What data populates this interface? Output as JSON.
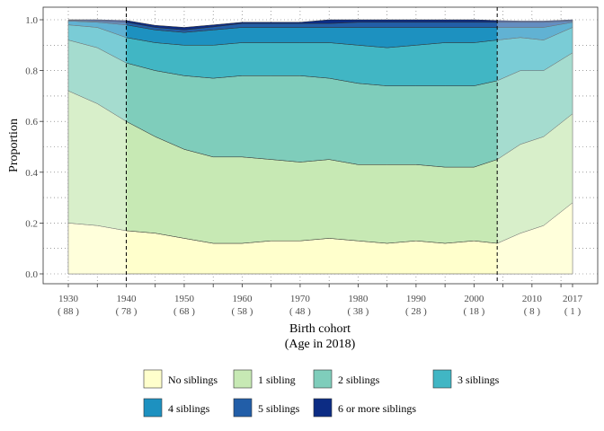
{
  "chart_data": {
    "type": "area",
    "stacked": true,
    "xlabel_line1": "Birth cohort",
    "xlabel_line2": "(Age in 2018)",
    "ylabel": "Proportion",
    "xlim": [
      1930,
      2017
    ],
    "ylim": [
      0,
      1
    ],
    "grid": true,
    "legend_position": "bottom",
    "x_ticks": [
      {
        "year": "1930",
        "age": "( 88 )"
      },
      {
        "year": "1940",
        "age": "( 78 )"
      },
      {
        "year": "1950",
        "age": "( 68 )"
      },
      {
        "year": "1960",
        "age": "( 58 )"
      },
      {
        "year": "1970",
        "age": "( 48 )"
      },
      {
        "year": "1980",
        "age": "( 38 )"
      },
      {
        "year": "1990",
        "age": "( 28 )"
      },
      {
        "year": "2000",
        "age": "( 18 )"
      },
      {
        "year": "2010",
        "age": "( 8 )"
      },
      {
        "year": "2017",
        "age": "( 1 )"
      }
    ],
    "y_ticks": [
      "0.0",
      "0.2",
      "0.4",
      "0.6",
      "0.8",
      "1.0"
    ],
    "vlines": [
      1940,
      2004
    ],
    "shaded_regions": [
      [
        1930,
        1940
      ],
      [
        2004,
        2017
      ]
    ],
    "x": [
      1930,
      1935,
      1940,
      1945,
      1950,
      1955,
      1960,
      1965,
      1970,
      1975,
      1980,
      1985,
      1990,
      1995,
      2000,
      2004,
      2008,
      2012,
      2017
    ],
    "series": [
      {
        "name": "No siblings",
        "color": "#ffffcc",
        "values": [
          0.2,
          0.19,
          0.17,
          0.16,
          0.14,
          0.12,
          0.12,
          0.13,
          0.13,
          0.14,
          0.13,
          0.12,
          0.13,
          0.12,
          0.13,
          0.12,
          0.16,
          0.19,
          0.28
        ]
      },
      {
        "name": "1 sibling",
        "color": "#c7e9b4",
        "values": [
          0.52,
          0.48,
          0.43,
          0.38,
          0.35,
          0.34,
          0.34,
          0.32,
          0.31,
          0.31,
          0.3,
          0.31,
          0.3,
          0.3,
          0.29,
          0.33,
          0.35,
          0.35,
          0.35
        ]
      },
      {
        "name": "2 siblings",
        "color": "#7fcdbb",
        "values": [
          0.2,
          0.22,
          0.23,
          0.26,
          0.29,
          0.31,
          0.32,
          0.33,
          0.34,
          0.32,
          0.32,
          0.31,
          0.31,
          0.32,
          0.32,
          0.31,
          0.29,
          0.26,
          0.24
        ]
      },
      {
        "name": "3 siblings",
        "color": "#41b6c4",
        "values": [
          0.06,
          0.08,
          0.1,
          0.11,
          0.12,
          0.13,
          0.13,
          0.13,
          0.13,
          0.14,
          0.15,
          0.15,
          0.16,
          0.17,
          0.17,
          0.16,
          0.13,
          0.12,
          0.1
        ]
      },
      {
        "name": "4 siblings",
        "color": "#1d91c0",
        "values": [
          0.015,
          0.02,
          0.05,
          0.05,
          0.05,
          0.06,
          0.06,
          0.06,
          0.06,
          0.06,
          0.07,
          0.08,
          0.07,
          0.06,
          0.06,
          0.05,
          0.04,
          0.05,
          0.02
        ]
      },
      {
        "name": "5 siblings",
        "color": "#225ea8",
        "values": [
          0.003,
          0.005,
          0.01,
          0.01,
          0.01,
          0.012,
          0.015,
          0.015,
          0.015,
          0.015,
          0.02,
          0.02,
          0.02,
          0.02,
          0.02,
          0.02,
          0.02,
          0.02,
          0.005
        ]
      },
      {
        "name": "6 or more siblings",
        "color": "#0c2c84",
        "values": [
          0.002,
          0.005,
          0.007,
          0.008,
          0.01,
          0.008,
          0.005,
          0.005,
          0.005,
          0.015,
          0.01,
          0.01,
          0.01,
          0.01,
          0.01,
          0.007,
          0.005,
          0.005,
          0.005
        ]
      }
    ]
  }
}
